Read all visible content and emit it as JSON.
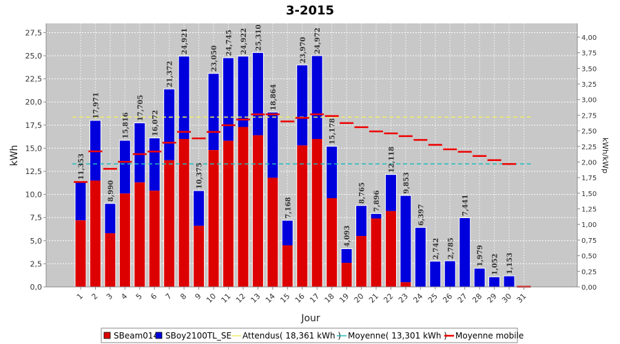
{
  "chart_data": {
    "type": "bar",
    "title": "3-2015",
    "xlabel": "Jour",
    "ylabel": "kWh",
    "y2label": "kWh/kWp",
    "ylim": [
      0,
      28.5
    ],
    "y2lim": [
      0,
      4.22
    ],
    "yticks": [
      "0,0",
      "2,5",
      "5,0",
      "7,5",
      "10,0",
      "12,5",
      "15,0",
      "17,5",
      "20,0",
      "22,5",
      "25,0",
      "27,5"
    ],
    "y2ticks": [
      "0,00",
      "0,25",
      "0,50",
      "0,75",
      "1,00",
      "1,25",
      "1,50",
      "1,75",
      "2,00",
      "2,25",
      "2,50",
      "2,75",
      "3,00",
      "3,25",
      "3,50",
      "3,75",
      "4,00"
    ],
    "categories": [
      "1",
      "2",
      "3",
      "4",
      "5",
      "6",
      "7",
      "8",
      "9",
      "10",
      "11",
      "12",
      "13",
      "14",
      "15",
      "16",
      "17",
      "18",
      "19",
      "20",
      "21",
      "22",
      "23",
      "24",
      "25",
      "26",
      "27",
      "28",
      "29",
      "30",
      "31"
    ],
    "series": [
      {
        "name": "SBeam014",
        "color": "#dd0000",
        "values": [
          7.2,
          11.5,
          5.8,
          10.1,
          11.3,
          10.4,
          13.7,
          16.0,
          6.6,
          14.8,
          15.8,
          17.3,
          16.4,
          11.8,
          4.5,
          15.3,
          16.0,
          9.6,
          2.6,
          5.5,
          7.4,
          8.2,
          0.5,
          0,
          0,
          0,
          0,
          0,
          0,
          0,
          0
        ]
      },
      {
        "name": "SBoy2100TL_SE",
        "color": "#0000dd",
        "values": [
          4.153,
          6.471,
          3.19,
          5.716,
          6.405,
          5.672,
          7.672,
          8.921,
          3.775,
          8.25,
          8.945,
          7.622,
          8.91,
          7.064,
          2.668,
          8.67,
          8.972,
          5.578,
          1.493,
          3.265,
          0.496,
          3.918,
          9.353,
          6.397,
          2.742,
          2.785,
          7.441,
          1.979,
          1.052,
          1.153,
          0
        ]
      }
    ],
    "totals": [
      "11,353",
      "17,971",
      "8,990",
      "15,816",
      "17,705",
      "16,072",
      "21,372",
      "24,921",
      "10,375",
      "23,050",
      "24,745",
      "24,922",
      "25,310",
      "18,864",
      "7,168",
      "23,970",
      "24,972",
      "15,178",
      "4,093",
      "8,765",
      "7,896",
      "12,118",
      "9,853",
      "6,397",
      "2,742",
      "2,785",
      "7,441",
      "1,979",
      "1,052",
      "1,153",
      ""
    ],
    "attendus": {
      "name": "Attendus( 18,361 kWh )",
      "value": 18.361,
      "color": "#eeee66"
    },
    "moyenne": {
      "name": "Moyenne( 13,301 kWh )",
      "value": 13.301,
      "color": "#22bbbb"
    },
    "moyenne_mobile": {
      "name": "Moyenne mobile",
      "color": "#ee0000",
      "values": [
        11.35,
        14.66,
        12.77,
        13.53,
        14.36,
        14.64,
        15.6,
        16.77,
        16.06,
        16.76,
        17.49,
        18.1,
        18.66,
        18.67,
        17.9,
        18.28,
        18.67,
        18.48,
        17.72,
        17.27,
        16.82,
        16.6,
        16.31,
        15.9,
        15.37,
        14.88,
        14.61,
        14.16,
        13.71,
        13.29,
        0.02
      ]
    },
    "legend_position": "bottom",
    "grid": true
  }
}
